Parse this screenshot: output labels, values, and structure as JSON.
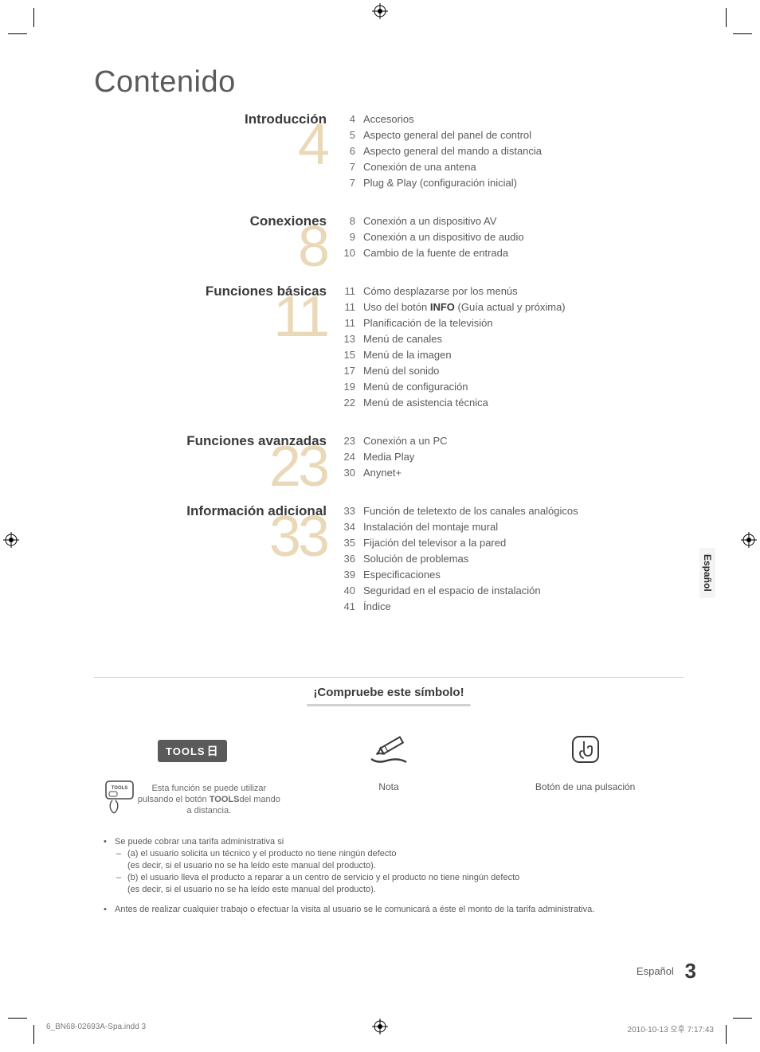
{
  "title": "Contenido",
  "sections": [
    {
      "heading": "Introducción",
      "big_number": "4",
      "items": [
        {
          "page": "4",
          "label": "Accesorios"
        },
        {
          "page": "5",
          "label": "Aspecto general del panel de control"
        },
        {
          "page": "6",
          "label": "Aspecto general del mando a distancia"
        },
        {
          "page": "7",
          "label": "Conexión de una antena"
        },
        {
          "page": "7",
          "label": "Plug & Play (configuración inicial)"
        }
      ]
    },
    {
      "heading": "Conexiones",
      "big_number": "8",
      "items": [
        {
          "page": "8",
          "label": "Conexión a un dispositivo AV"
        },
        {
          "page": "9",
          "label": "Conexión a un dispositivo de audio"
        },
        {
          "page": "10",
          "label": "Cambio de la fuente de entrada"
        }
      ]
    },
    {
      "heading": "Funciones básicas",
      "big_number": "11",
      "items": [
        {
          "page": "11",
          "label": "Cómo desplazarse por los menús"
        },
        {
          "page": "11",
          "label_pre": "Uso del botón ",
          "label_bold": "INFO",
          "label_post": " (Guía actual y próxima)"
        },
        {
          "page": "11",
          "label": "Planificación de la televisión"
        },
        {
          "page": "13",
          "label": "Menú de canales"
        },
        {
          "page": "15",
          "label": "Menú de la imagen"
        },
        {
          "page": "17",
          "label": "Menú del sonido"
        },
        {
          "page": "19",
          "label": "Menú de configuración"
        },
        {
          "page": "22",
          "label": "Menú de asistencia técnica"
        }
      ]
    },
    {
      "heading": "Funciones avanzadas",
      "big_number": "23",
      "items": [
        {
          "page": "23",
          "label": "Conexión a un PC"
        },
        {
          "page": "24",
          "label": "Media Play"
        },
        {
          "page": "30",
          "label": "Anynet+"
        }
      ]
    },
    {
      "heading": "Información adicional",
      "big_number": "33",
      "items": [
        {
          "page": "33",
          "label": "Función de teletexto de los canales analógicos"
        },
        {
          "page": "34",
          "label": "Instalación del montaje mural"
        },
        {
          "page": "35",
          "label": "Fijación del televisor a la pared"
        },
        {
          "page": "36",
          "label": "Solución de problemas"
        },
        {
          "page": "39",
          "label": "Especificaciones"
        },
        {
          "page": "40",
          "label": "Seguridad en el espacio de instalación"
        },
        {
          "page": "41",
          "label": "Índice"
        }
      ]
    }
  ],
  "language_tab": "Español",
  "symbol_box": {
    "title": "¡Compruebe este símbolo!",
    "tools_badge": "TOOLS",
    "col1_line1": "Esta función se puede utilizar",
    "col1_line2_pre": "pulsando el botón ",
    "col1_line2_bold": "TOOLS",
    "col1_line2_post": "del mando",
    "col1_line3": "a distancia.",
    "col2_label": "Nota",
    "col3_label": "Botón de una pulsación"
  },
  "notes": {
    "n1": "Se puede cobrar una tarifa administrativa si",
    "n1a": "(a) el usuario solicita un técnico y el producto no tiene ningún defecto",
    "n1a2": "(es decir, si el usuario no se ha leído este manual del producto).",
    "n1b": "(b) el usuario lleva el producto a reparar a un centro de servicio y el producto no tiene ningún defecto",
    "n1b2": "(es decir, si el usuario no se ha leído este manual del producto).",
    "n2": "Antes de realizar cualquier trabajo o efectuar la visita al usuario se le comunicará a éste el monto de la tarifa administrativa."
  },
  "footer": {
    "lang": "Español",
    "page": "3"
  },
  "print_meta": {
    "file": "6_BN68-02693A-Spa.indd   3",
    "stamp": "2010-10-13   오후 7:17:43"
  },
  "colors": {
    "big_num": "#ead9b8",
    "text": "#5a5a5a",
    "heading": "#3a3a3a",
    "badge_bg": "#5a5a5a",
    "rule": "#cfcfcf"
  }
}
